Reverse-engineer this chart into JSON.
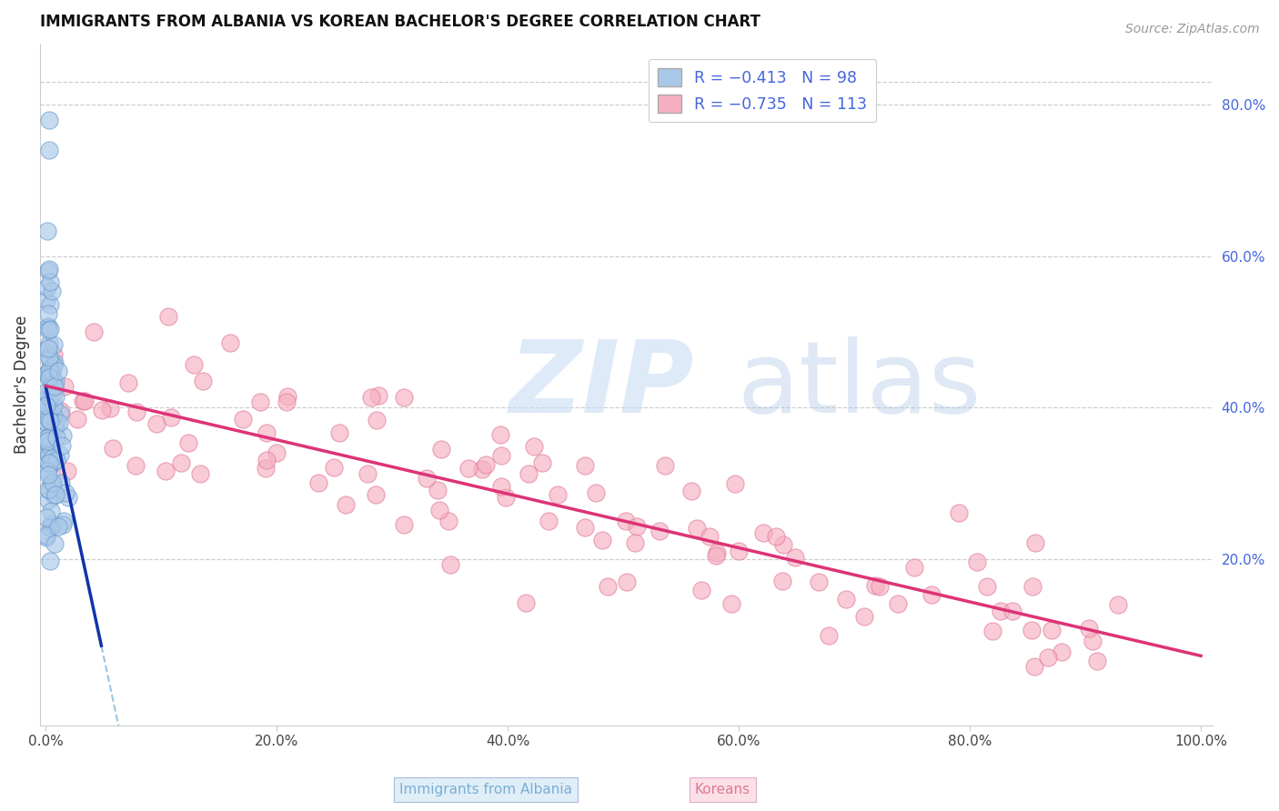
{
  "title": "IMMIGRANTS FROM ALBANIA VS KOREAN BACHELOR'S DEGREE CORRELATION CHART",
  "source_text": "Source: ZipAtlas.com",
  "ylabel": "Bachelor's Degree",
  "right_ytick_labels": [
    "20.0%",
    "40.0%",
    "60.0%",
    "80.0%"
  ],
  "right_ytick_values": [
    0.2,
    0.4,
    0.6,
    0.8
  ],
  "xtick_labels": [
    "0.0%",
    "20.0%",
    "40.0%",
    "60.0%",
    "80.0%",
    "100.0%"
  ],
  "xtick_values": [
    0.0,
    0.2,
    0.4,
    0.6,
    0.8,
    1.0
  ],
  "xlim": [
    -0.005,
    1.01
  ],
  "ylim": [
    -0.02,
    0.88
  ],
  "legend_r1": "R = −0.413   N = 98",
  "legend_r2": "R = −0.735   N = 113",
  "albania_fill": "#aac8e8",
  "albania_edge": "#6699cc",
  "korean_fill": "#f5afc0",
  "korean_edge": "#e07898",
  "reg_albania_solid_color": "#1133aa",
  "reg_albania_dash_color": "#88bbdd",
  "reg_korea_color": "#dd3377",
  "grid_color": "#cccccc",
  "spine_color": "#cccccc",
  "title_color": "#111111",
  "source_color": "#999999",
  "axis_label_color": "#333333",
  "tick_color": "#444444",
  "right_tick_color": "#4466dd",
  "legend_text_color": "#4466dd",
  "bottom_legend_alb_text": "#7bafd4",
  "bottom_legend_kor_text": "#e07898",
  "bottom_legend_alb_bg": "#e0eef8",
  "bottom_legend_kor_bg": "#fce0e8"
}
